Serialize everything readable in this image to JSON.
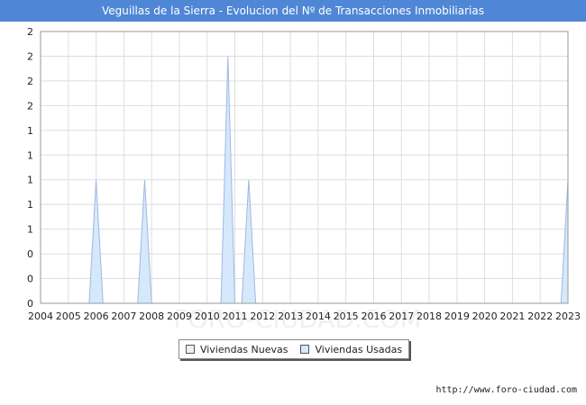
{
  "title": "Veguillas de la Sierra - Evolucion del Nº de Transacciones Inmobiliarias",
  "footer_url": "http://www.foro-ciudad.com",
  "legend": [
    {
      "label": "Viviendas Nuevas",
      "color": "#f0f0f0"
    },
    {
      "label": "Viviendas Usadas",
      "color": "#d6e8fb"
    }
  ],
  "chart_data": {
    "type": "area",
    "x_ticks": [
      "2004",
      "2005",
      "2006",
      "2007",
      "2008",
      "2009",
      "2010",
      "2011",
      "2012",
      "2013",
      "2014",
      "2015",
      "2016",
      "2017",
      "2018",
      "2019",
      "2020",
      "2021",
      "2022",
      "2023"
    ],
    "y_ticks": [
      "0",
      "0",
      "0",
      "1",
      "1",
      "1",
      "1",
      "1",
      "2",
      "2",
      "2",
      "2"
    ],
    "xlim": [
      2004,
      2023
    ],
    "ylim": [
      0,
      2.2
    ],
    "grid": true,
    "legend_position": "bottom",
    "series": [
      {
        "name": "Viviendas Nuevas",
        "color": "#f0f0f0",
        "points": []
      },
      {
        "name": "Viviendas Usadas",
        "color": "#d6e8fb",
        "line": "#9fb8e4",
        "points": [
          [
            2005.75,
            0
          ],
          [
            2006.0,
            1.0
          ],
          [
            2006.25,
            0
          ],
          [
            2007.5,
            0
          ],
          [
            2007.75,
            1.0
          ],
          [
            2008.0,
            0
          ],
          [
            2010.5,
            0
          ],
          [
            2010.75,
            2.0
          ],
          [
            2011.0,
            0
          ],
          [
            2011.25,
            0
          ],
          [
            2011.5,
            1.0
          ],
          [
            2011.75,
            0
          ],
          [
            2022.75,
            0
          ],
          [
            2023.0,
            1.0
          ]
        ]
      }
    ]
  }
}
